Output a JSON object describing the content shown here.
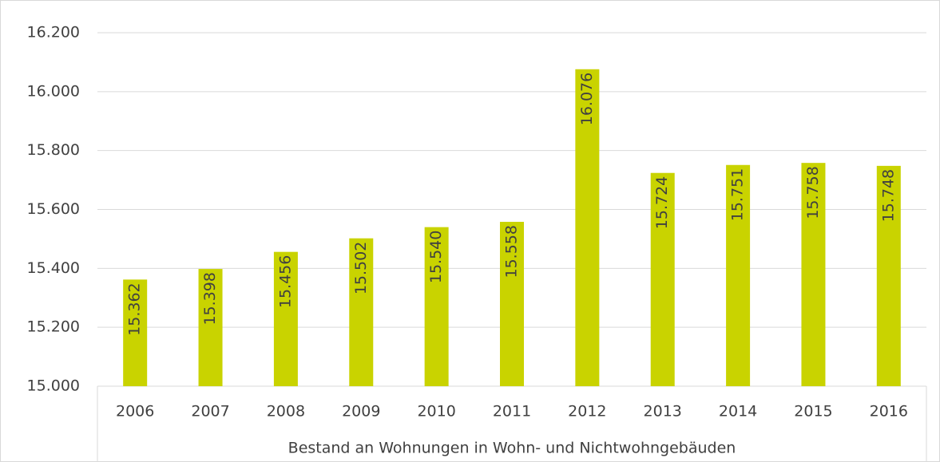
{
  "chart_data": {
    "type": "bar",
    "x_label": "Bestand an Wohnungen in Wohn- und Nichtwohngebäuden",
    "categories": [
      "2006",
      "2007",
      "2008",
      "2009",
      "2010",
      "2011",
      "2012",
      "2013",
      "2014",
      "2015",
      "2016"
    ],
    "values": [
      15362,
      15398,
      15456,
      15502,
      15540,
      15558,
      16076,
      15724,
      15751,
      15758,
      15748
    ],
    "value_labels": [
      "15.362",
      "15.398",
      "15.456",
      "15.502",
      "15.540",
      "15.558",
      "16.076",
      "15.724",
      "15.751",
      "15.758",
      "15.748"
    ],
    "color": "#c9d300",
    "ylim": [
      15000,
      16200
    ],
    "yticks": [
      {
        "value": 15000,
        "label": "15.000"
      },
      {
        "value": 15200,
        "label": "15.200"
      },
      {
        "value": 15400,
        "label": "15.400"
      },
      {
        "value": 15600,
        "label": "15.600"
      },
      {
        "value": 15800,
        "label": "15.800"
      },
      {
        "value": 16000,
        "label": "16.000"
      },
      {
        "value": 16200,
        "label": "16.200"
      }
    ],
    "grid": true
  }
}
